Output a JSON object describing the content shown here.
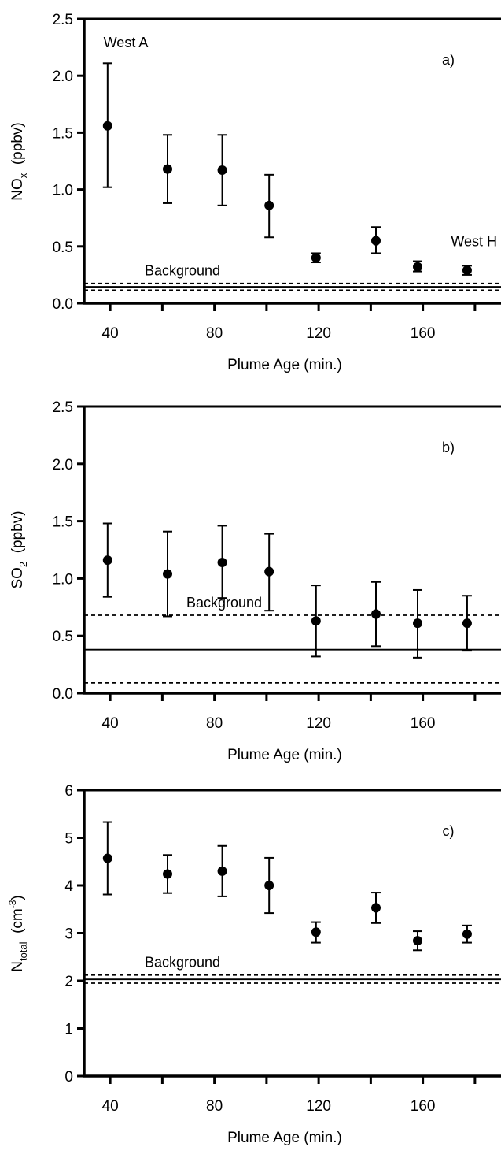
{
  "chart_data": [
    {
      "type": "scatter",
      "panel_label": "a)",
      "xlabel": "Plume Age  (min.)",
      "ylabel": "NO",
      "ylabel_sub": "x",
      "ylabel_unit": "(ppbv)",
      "xlim": [
        30,
        190
      ],
      "ylim": [
        0,
        2.5
      ],
      "xticks": [
        40,
        80,
        120,
        160
      ],
      "xticks_minor": [
        60,
        100,
        140,
        180
      ],
      "yticks": [
        0.0,
        0.5,
        1.0,
        1.5,
        2.0,
        2.5
      ],
      "ytick_labels": [
        "0.0",
        "0.5",
        "1.0",
        "1.5",
        "2.0",
        "2.5"
      ],
      "series": [
        {
          "x": [
            39,
            62,
            83,
            101,
            119,
            142,
            158,
            177
          ],
          "y": [
            1.56,
            1.18,
            1.17,
            0.86,
            0.4,
            0.55,
            0.32,
            0.29
          ],
          "err_low": [
            1.02,
            0.88,
            0.86,
            0.58,
            0.36,
            0.44,
            0.28,
            0.25
          ],
          "err_high": [
            2.11,
            1.48,
            1.48,
            1.13,
            0.44,
            0.67,
            0.37,
            0.33
          ]
        }
      ],
      "background": {
        "label": "Background",
        "value": 0.145,
        "lower": 0.115,
        "upper": 0.175
      },
      "annotations": [
        {
          "text": "West A",
          "x": 39
        },
        {
          "text": "West H",
          "x": 177
        }
      ]
    },
    {
      "type": "scatter",
      "panel_label": "b)",
      "xlabel": "Plume Age  (min.)",
      "ylabel": "SO",
      "ylabel_sub": "2",
      "ylabel_unit": "(ppbv)",
      "xlim": [
        30,
        190
      ],
      "ylim": [
        0,
        2.5
      ],
      "xticks": [
        40,
        80,
        120,
        160
      ],
      "xticks_minor": [
        60,
        100,
        140,
        180
      ],
      "yticks": [
        0.0,
        0.5,
        1.0,
        1.5,
        2.0,
        2.5
      ],
      "ytick_labels": [
        "0.0",
        "0.5",
        "1.0",
        "1.5",
        "2.0",
        "2.5"
      ],
      "series": [
        {
          "x": [
            39,
            62,
            83,
            101,
            119,
            142,
            158,
            177
          ],
          "y": [
            1.16,
            1.04,
            1.14,
            1.06,
            0.63,
            0.69,
            0.61,
            0.61
          ],
          "err_low": [
            0.84,
            0.67,
            0.83,
            0.72,
            0.32,
            0.41,
            0.31,
            0.37
          ],
          "err_high": [
            1.48,
            1.41,
            1.46,
            1.39,
            0.94,
            0.97,
            0.9,
            0.85
          ]
        }
      ],
      "background": {
        "label": "Background",
        "value": 0.38,
        "lower": 0.09,
        "upper": 0.68
      }
    },
    {
      "type": "scatter",
      "panel_label": "c)",
      "xlabel": "Plume Age  (min.)",
      "ylabel": "N",
      "ylabel_sub": "total",
      "ylabel_unit_pre": "(cm",
      "ylabel_unit_sup": "-3",
      "ylabel_unit_post": ")",
      "xlim": [
        30,
        190
      ],
      "ylim": [
        0,
        6
      ],
      "xticks": [
        40,
        80,
        120,
        160
      ],
      "xticks_minor": [
        60,
        100,
        140,
        180
      ],
      "yticks": [
        0,
        1,
        2,
        3,
        4,
        5,
        6
      ],
      "ytick_labels": [
        "0",
        "1",
        "2",
        "3",
        "4",
        "5",
        "6"
      ],
      "series": [
        {
          "x": [
            39,
            62,
            83,
            101,
            119,
            142,
            158,
            177
          ],
          "y": [
            4.57,
            4.24,
            4.3,
            4.0,
            3.02,
            3.53,
            2.84,
            2.98
          ],
          "err_low": [
            3.81,
            3.84,
            3.77,
            3.42,
            2.8,
            3.21,
            2.64,
            2.8
          ],
          "err_high": [
            5.33,
            4.64,
            4.83,
            4.58,
            3.23,
            3.85,
            3.04,
            3.16
          ]
        }
      ],
      "background": {
        "label": "Background",
        "value": 2.03,
        "lower": 1.95,
        "upper": 2.12
      }
    }
  ]
}
